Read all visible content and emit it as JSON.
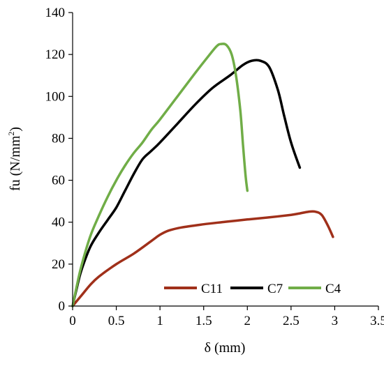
{
  "chart_data": {
    "type": "line",
    "title": "",
    "xlabel": "δ (mm)",
    "ylabel_base": "fu (N/mm",
    "ylabel_sup": "2",
    "ylabel_tail": ")",
    "xlim": [
      0,
      3.5
    ],
    "ylim": [
      0,
      140
    ],
    "x_ticks": [
      0,
      0.5,
      1,
      1.5,
      2,
      2.5,
      3,
      3.5
    ],
    "x_tick_labels": [
      "0",
      "0.5",
      "1",
      "1.5",
      "2",
      "2.5",
      "3",
      "3.5"
    ],
    "y_ticks": [
      0,
      20,
      40,
      60,
      80,
      100,
      120,
      140
    ],
    "y_tick_labels": [
      "0",
      "20",
      "40",
      "60",
      "80",
      "100",
      "120",
      "140"
    ],
    "grid": false,
    "legend_position": "bottom-right",
    "series": [
      {
        "name": "C11",
        "color": "#a0301a",
        "points": [
          [
            0,
            0
          ],
          [
            0.1,
            5
          ],
          [
            0.2,
            10
          ],
          [
            0.3,
            14
          ],
          [
            0.5,
            20
          ],
          [
            0.7,
            25
          ],
          [
            0.9,
            31
          ],
          [
            1.0,
            34
          ],
          [
            1.1,
            36
          ],
          [
            1.25,
            37.5
          ],
          [
            1.5,
            39
          ],
          [
            1.75,
            40.2
          ],
          [
            2.0,
            41.3
          ],
          [
            2.25,
            42.3
          ],
          [
            2.5,
            43.5
          ],
          [
            2.6,
            44.2
          ],
          [
            2.7,
            45
          ],
          [
            2.78,
            45
          ],
          [
            2.85,
            43.5
          ],
          [
            2.92,
            38.5
          ],
          [
            2.98,
            33
          ]
        ]
      },
      {
        "name": "C7",
        "color": "#000000",
        "points": [
          [
            0,
            0
          ],
          [
            0.05,
            9
          ],
          [
            0.1,
            17
          ],
          [
            0.2,
            28
          ],
          [
            0.3,
            35
          ],
          [
            0.4,
            41
          ],
          [
            0.5,
            47
          ],
          [
            0.6,
            55
          ],
          [
            0.7,
            63
          ],
          [
            0.8,
            70
          ],
          [
            0.9,
            74
          ],
          [
            1.0,
            78
          ],
          [
            1.2,
            87
          ],
          [
            1.4,
            96
          ],
          [
            1.6,
            104
          ],
          [
            1.8,
            110
          ],
          [
            1.95,
            115
          ],
          [
            2.05,
            117
          ],
          [
            2.15,
            117
          ],
          [
            2.25,
            114
          ],
          [
            2.35,
            103
          ],
          [
            2.42,
            91
          ],
          [
            2.5,
            78
          ],
          [
            2.6,
            66
          ]
        ]
      },
      {
        "name": "C4",
        "color": "#70ad47",
        "points": [
          [
            0,
            0
          ],
          [
            0.05,
            10
          ],
          [
            0.1,
            19
          ],
          [
            0.2,
            33
          ],
          [
            0.3,
            43
          ],
          [
            0.4,
            52
          ],
          [
            0.5,
            60
          ],
          [
            0.6,
            67
          ],
          [
            0.7,
            73
          ],
          [
            0.8,
            78
          ],
          [
            0.9,
            84
          ],
          [
            1.0,
            89
          ],
          [
            1.2,
            100
          ],
          [
            1.4,
            111
          ],
          [
            1.55,
            119
          ],
          [
            1.65,
            124
          ],
          [
            1.7,
            125
          ],
          [
            1.76,
            124.5
          ],
          [
            1.82,
            120
          ],
          [
            1.87,
            110
          ],
          [
            1.92,
            93
          ],
          [
            1.95,
            77
          ],
          [
            1.98,
            62
          ],
          [
            2.0,
            55
          ]
        ]
      }
    ]
  }
}
